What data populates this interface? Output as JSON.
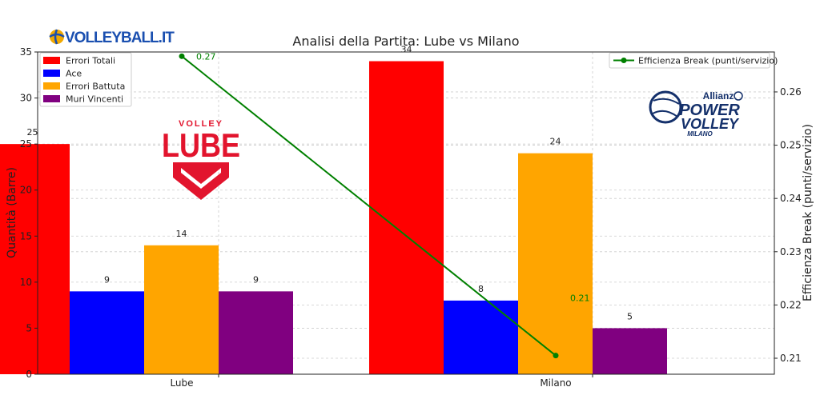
{
  "logo_text": "VOLLEYBALL.IT",
  "chart_data": {
    "type": "bar",
    "title": "Analisi della Partita: Lube vs Milano",
    "categories": [
      "Lube",
      "Milano"
    ],
    "ylabel": "Quantità (Barre)",
    "ylabel_right": "Efficienza Break (punti/servizio)",
    "ylim": [
      0,
      35
    ],
    "ylim_right": [
      0.207,
      0.2675
    ],
    "yticks": [
      0,
      5,
      10,
      15,
      20,
      25,
      30,
      35
    ],
    "yticks_right": [
      0.21,
      0.22,
      0.23,
      0.24,
      0.25,
      0.26
    ],
    "grid": true,
    "legend_placement": "top-left",
    "legend_right_placement": "top-right",
    "series": [
      {
        "name": "Errori Totali",
        "values": [
          25,
          34
        ],
        "labels": [
          "25",
          "34"
        ],
        "color": "#ff0000"
      },
      {
        "name": "Ace",
        "values": [
          9,
          8
        ],
        "labels": [
          "9",
          "8"
        ],
        "color": "#0000ff"
      },
      {
        "name": "Errori Battuta",
        "values": [
          14,
          24
        ],
        "labels": [
          "14",
          "24"
        ],
        "color": "#ffa500"
      },
      {
        "name": "Muri Vincenti",
        "values": [
          9,
          5
        ],
        "labels": [
          "9",
          "5"
        ],
        "color": "#800080"
      }
    ],
    "line_series": {
      "name": "Efficienza Break (punti/servizio)",
      "values": [
        0.2667,
        0.2105
      ],
      "labels": [
        "0.27",
        "0.21"
      ],
      "color": "#008000"
    }
  },
  "logos": {
    "lube_small": "VOLLEY",
    "lube_big": "LUBE",
    "milano_top": "Allianz",
    "milano_l1": "POWER",
    "milano_l2": "VOLLEY",
    "milano_l3": "MILANO"
  }
}
